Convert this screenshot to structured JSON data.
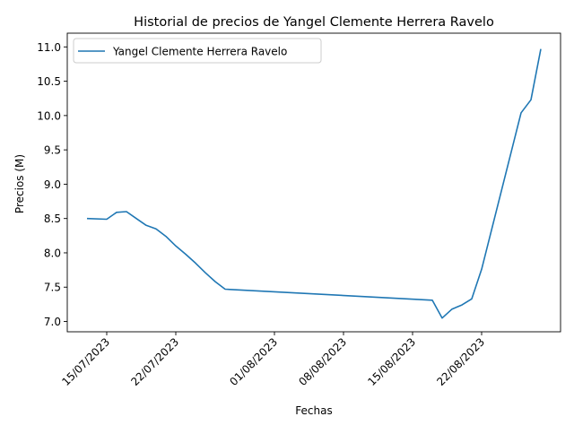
{
  "chart_data": {
    "type": "line",
    "title": "Historial de precios de Yangel Clemente Herrera Ravelo",
    "xlabel": "Fechas",
    "ylabel": "Precios (M)",
    "x_ticks": [
      "2023-07-15",
      "2023-07-22",
      "2023-08-01",
      "2023-08-08",
      "2023-08-15",
      "2023-08-22"
    ],
    "x_tick_labels": [
      "15/07/2023",
      "22/07/2023",
      "01/08/2023",
      "08/08/2023",
      "15/08/2023",
      "22/08/2023"
    ],
    "xlim": [
      "2023-07-11",
      "2023-08-30"
    ],
    "ylim": [
      6.85,
      11.2
    ],
    "y_ticks": [
      7.0,
      7.5,
      8.0,
      8.5,
      9.0,
      9.5,
      10.0,
      10.5,
      11.0
    ],
    "y_tick_labels": [
      "7.0",
      "7.5",
      "8.0",
      "8.5",
      "9.0",
      "9.5",
      "10.0",
      "10.5",
      "11.0"
    ],
    "grid": false,
    "legend": "top-left",
    "series": [
      {
        "name": "Yangel Clemente Herrera Ravelo",
        "color": "#1f77b4",
        "x": [
          "2023-07-13",
          "2023-07-15",
          "2023-07-16",
          "2023-07-17",
          "2023-07-18",
          "2023-07-19",
          "2023-07-20",
          "2023-07-21",
          "2023-07-22",
          "2023-07-23",
          "2023-07-24",
          "2023-07-25",
          "2023-07-26",
          "2023-07-27",
          "2023-08-17",
          "2023-08-18",
          "2023-08-19",
          "2023-08-20",
          "2023-08-21",
          "2023-08-22",
          "2023-08-23",
          "2023-08-24",
          "2023-08-25",
          "2023-08-26",
          "2023-08-27",
          "2023-08-28"
        ],
        "y": [
          8.5,
          8.49,
          8.59,
          8.6,
          8.5,
          8.4,
          8.35,
          8.24,
          8.1,
          7.98,
          7.85,
          7.71,
          7.58,
          7.47,
          7.31,
          7.05,
          7.18,
          7.24,
          7.33,
          7.76,
          8.33,
          8.9,
          9.47,
          10.04,
          10.23,
          10.97
        ]
      }
    ]
  }
}
